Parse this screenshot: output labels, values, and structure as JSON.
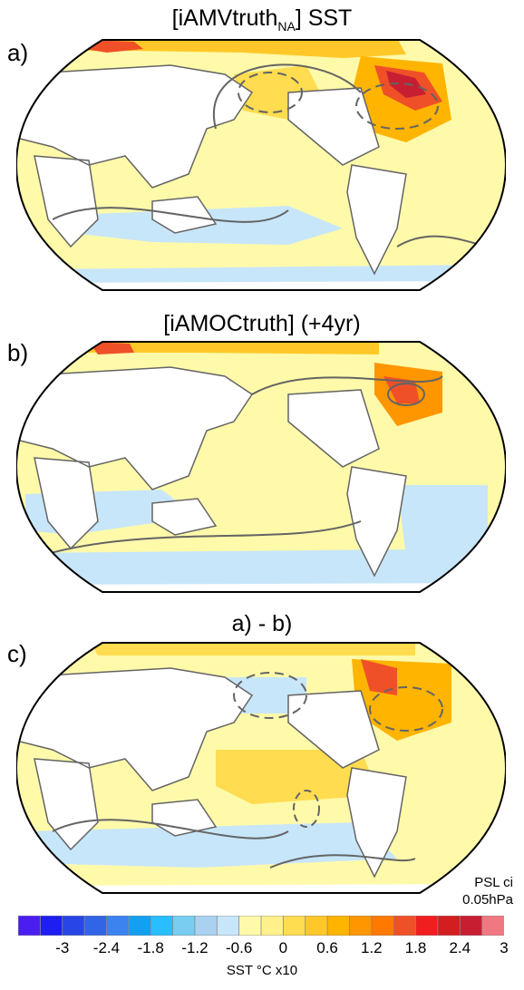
{
  "panels": [
    {
      "letter": "a)",
      "title": "[iAMVtruth",
      "title_sub": "NA",
      "title_suffix": "] SST"
    },
    {
      "letter": "b)",
      "title": "[iAMOCtruth] (+4yr)",
      "title_sub": "",
      "title_suffix": ""
    },
    {
      "letter": "c)",
      "title": "a) - b)",
      "title_sub": "",
      "title_suffix": ""
    }
  ],
  "psl_note": {
    "line1": "PSL ci",
    "line2": "0.05hPa"
  },
  "colorbar": {
    "label": "SST °C x10",
    "tick_labels": [
      "-3",
      "-2.4",
      "-1.8",
      "-1.2",
      "-0.6",
      "0",
      "0.6",
      "1.2",
      "1.8",
      "2.4",
      "3"
    ],
    "colors": [
      "#4b1ef0",
      "#1e1ef0",
      "#2846e6",
      "#3264e6",
      "#3c82f0",
      "#14a0f0",
      "#28beff",
      "#78cdf0",
      "#aad2f0",
      "#c8e6fa",
      "#fffaaa",
      "#fff08c",
      "#ffdc50",
      "#ffc828",
      "#ffb400",
      "#ff9600",
      "#ff7800",
      "#f05028",
      "#f01e1e",
      "#d21e1e",
      "#c81e32",
      "#f07882"
    ],
    "land_color": "#ffffff",
    "contour_color": "#646464"
  }
}
